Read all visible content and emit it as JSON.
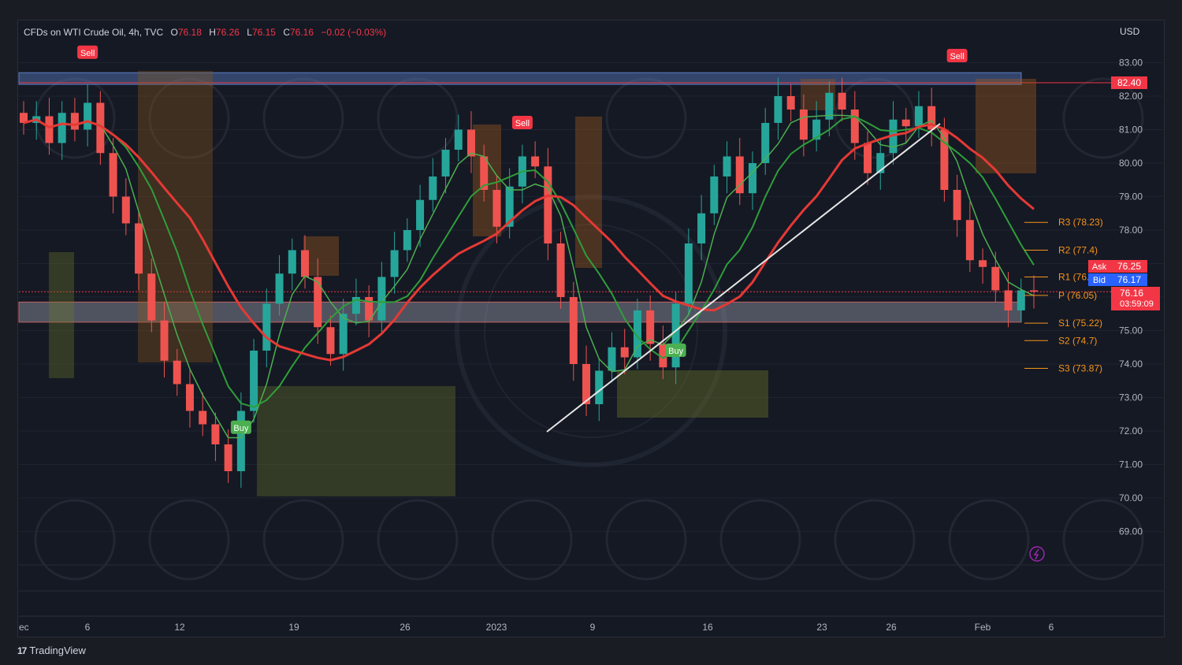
{
  "header": {
    "symbol": "CFDs on WTI Crude Oil, 4h, TVC",
    "open_label": "O",
    "open": "76.18",
    "high_label": "H",
    "high": "76.26",
    "low_label": "L",
    "low": "76.15",
    "close_label": "C",
    "close": "76.16",
    "change": "−0.02 (−0.03%)"
  },
  "currency": "USD",
  "footer": {
    "brand": "TradingView"
  },
  "colors": {
    "up": "#26a69a",
    "down": "#ef5350",
    "bg": "#151924",
    "accent_red": "#f23645",
    "accent_blue": "#2962ff",
    "pivot": "#f7931a",
    "buy": "#4caf50",
    "sell": "#f23645"
  },
  "chart_data": {
    "type": "candlestick",
    "title": "CFDs on WTI Crude Oil, 4h, TVC",
    "ylim": [
      68,
      84
    ],
    "y_ticks": [
      "83.00",
      "82.00",
      "81.00",
      "80.00",
      "79.00",
      "78.00",
      "77.00",
      "76.00",
      "75.00",
      "74.00",
      "73.00",
      "72.00",
      "71.00",
      "70.00",
      "69.00"
    ],
    "x_ticks": [
      "ec",
      "6",
      "12",
      "19",
      "26",
      "2023",
      "9",
      "16",
      "23",
      "26",
      "Feb",
      "6"
    ],
    "price_labels": [
      {
        "text": "82.40",
        "value": 82.4
      },
      {
        "text": "Ask",
        "value": "76.25"
      },
      {
        "text": "Bid",
        "value": "76.17"
      },
      {
        "text": "76.16",
        "value": 76.16,
        "sub": "03:59:09"
      }
    ],
    "pivots": [
      {
        "label": "R3 (78.23)",
        "value": 78.23
      },
      {
        "label": "R2 (77.4)",
        "value": 77.4
      },
      {
        "label": "R1 (76.",
        "value": 76.6
      },
      {
        "label": "P (76.05)",
        "value": 76.05
      },
      {
        "label": "S1 (75.22)",
        "value": 75.22
      },
      {
        "label": "S2 (74.7)",
        "value": 74.7
      },
      {
        "label": "S3 (73.87)",
        "value": 73.87
      }
    ],
    "signals": [
      {
        "label": "Sell",
        "x_index": 5,
        "price": 83.3
      },
      {
        "label": "Buy",
        "x_index": 17,
        "price": 72.1
      },
      {
        "label": "Sell",
        "x_index": 39,
        "price": 81.2
      },
      {
        "label": "Buy",
        "x_index": 51,
        "price": 74.4
      },
      {
        "label": "Sell",
        "x_index": 73,
        "price": 83.2
      }
    ],
    "zones": [
      {
        "name": "resistance",
        "from": 82.35,
        "to": 82.7
      },
      {
        "name": "support",
        "from": 75.25,
        "to": 75.85
      }
    ],
    "series": [
      {
        "name": "candles",
        "close": [
          81.2,
          81.4,
          80.6,
          81.5,
          81.0,
          81.8,
          80.3,
          79.0,
          78.2,
          76.7,
          75.3,
          74.1,
          73.4,
          72.6,
          72.2,
          71.6,
          70.8,
          72.6,
          74.4,
          75.8,
          76.7,
          77.4,
          76.6,
          75.1,
          74.3,
          75.5,
          76.0,
          75.3,
          76.6,
          77.4,
          78.0,
          78.9,
          79.6,
          80.4,
          81.0,
          80.2,
          79.2,
          78.1,
          79.3,
          80.2,
          79.9,
          77.6,
          76.0,
          74.0,
          72.8,
          73.8,
          74.5,
          74.2,
          75.6,
          74.6,
          73.9,
          75.8,
          77.6,
          78.5,
          79.6,
          80.2,
          79.1,
          80.0,
          81.2,
          82.0,
          81.6,
          80.7,
          81.3,
          82.1,
          81.6,
          80.6,
          79.7,
          80.3,
          81.3,
          81.1,
          81.7,
          81.0,
          79.2,
          78.3,
          77.1,
          76.9,
          76.2,
          75.6,
          76.2,
          76.16
        ]
      }
    ]
  }
}
